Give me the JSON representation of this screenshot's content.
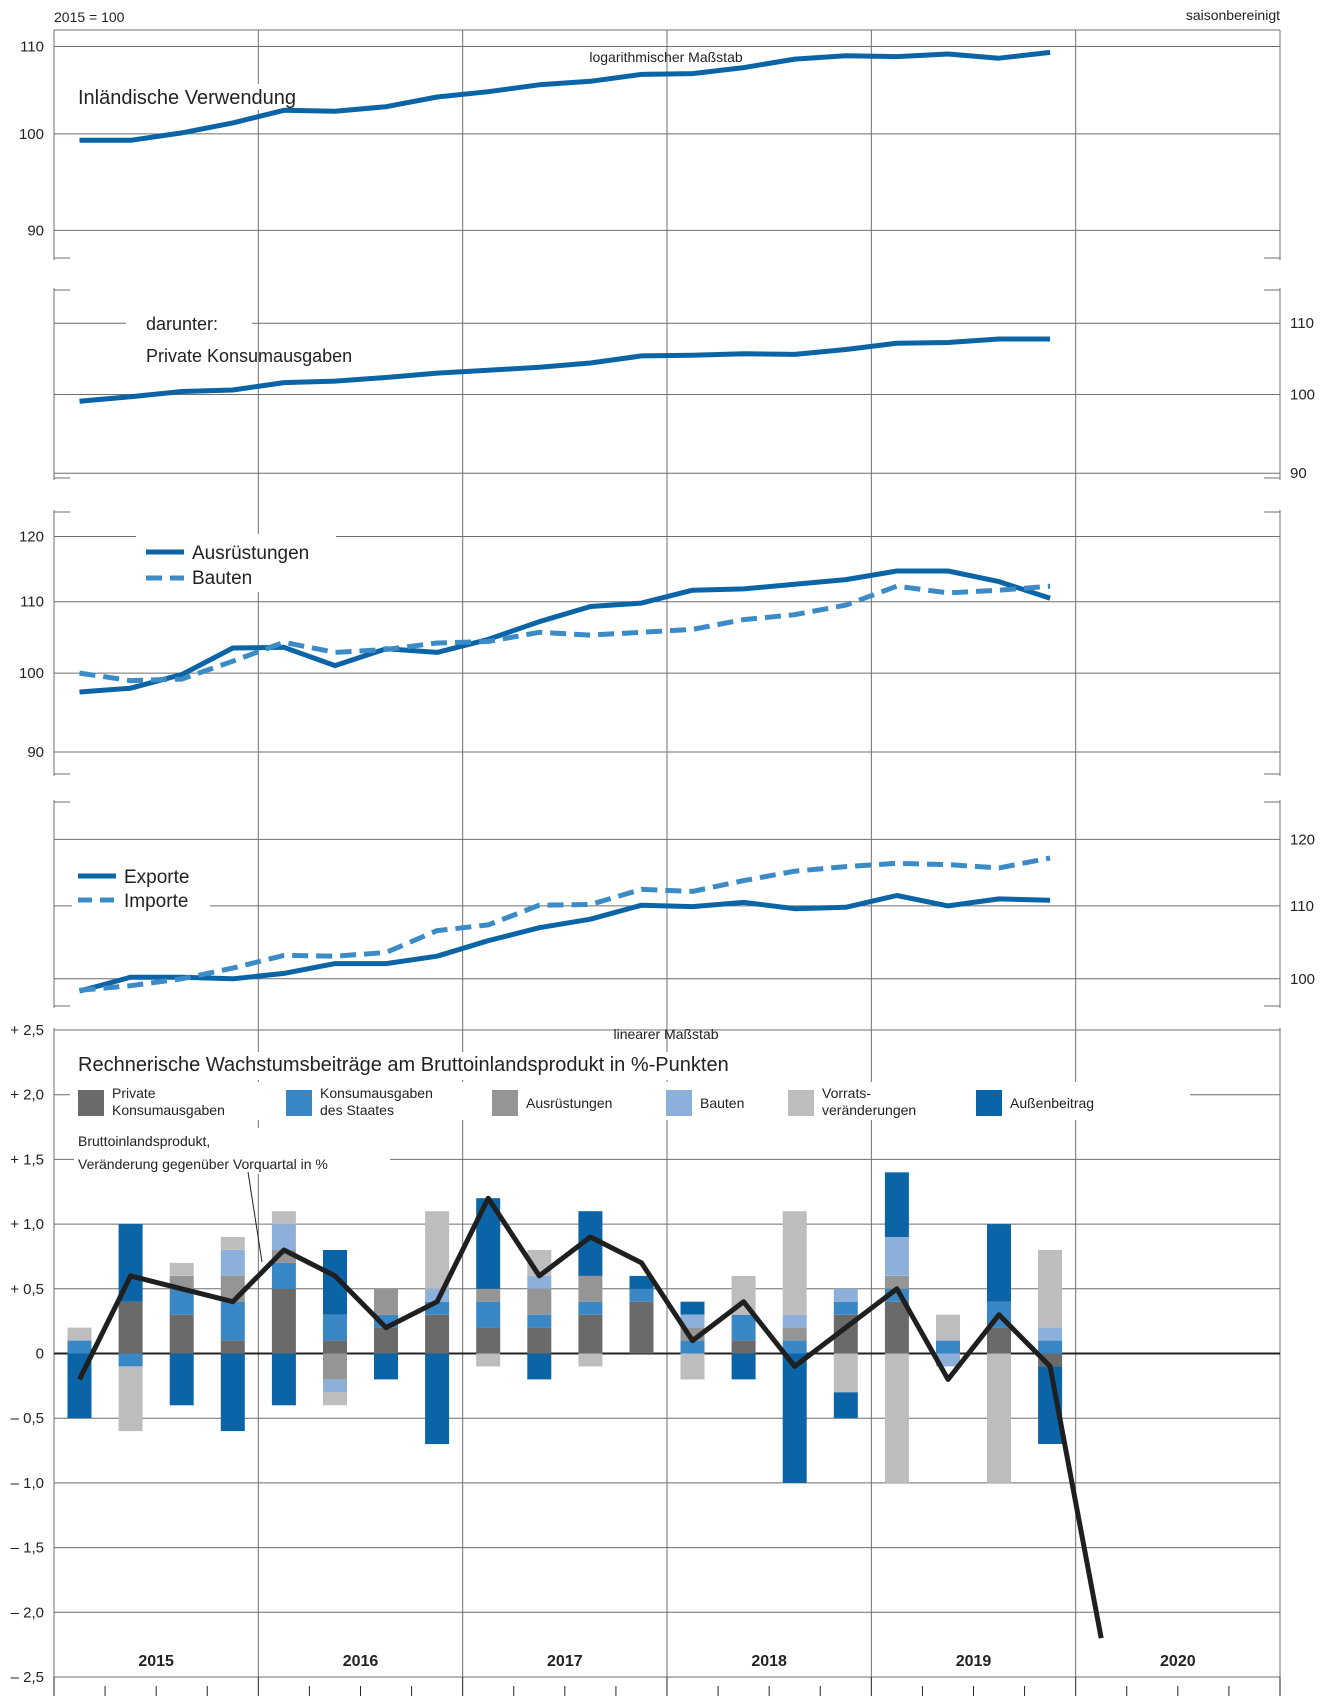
{
  "header": {
    "base_label": "2015 = 100",
    "adjustment_label": "saisonbereinigt"
  },
  "years": [
    "2015",
    "2016",
    "2017",
    "2018",
    "2019",
    "2020"
  ],
  "quarters_per_year": 4,
  "colors": {
    "grid": "#6f6f6f",
    "line_dark": "#0b64a5",
    "line_light": "#3b8bc6",
    "gdp_line": "#1f1f1f"
  },
  "chart_data": [
    {
      "type": "line",
      "scale": "log",
      "scale_note": "logarithmischer Maßstab",
      "title": "Inländische Verwendung",
      "yticks": [
        90,
        100,
        110
      ],
      "ylim": [
        86,
        112
      ],
      "axis_side": "left",
      "series": [
        {
          "name": "Inländische Verwendung",
          "style": "solid",
          "values": [
            99.3,
            99.3,
            100.1,
            101.2,
            102.6,
            102.5,
            103.0,
            104.1,
            104.7,
            105.5,
            105.9,
            106.7,
            106.8,
            107.5,
            108.5,
            108.9,
            108.8,
            109.1,
            108.6,
            109.3
          ]
        }
      ]
    },
    {
      "type": "line",
      "scale": "log",
      "title": "darunter:",
      "subtitle": "Private Konsumausgaben",
      "yticks": [
        90,
        100,
        110
      ],
      "ylim": [
        88,
        115
      ],
      "axis_side": "right",
      "series": [
        {
          "name": "Private Konsumausgaben",
          "style": "solid",
          "values": [
            99.1,
            99.7,
            100.4,
            100.6,
            101.6,
            101.8,
            102.3,
            102.9,
            103.3,
            103.7,
            104.3,
            105.3,
            105.4,
            105.6,
            105.5,
            106.2,
            107.1,
            107.2,
            107.7,
            107.7
          ]
        }
      ]
    },
    {
      "type": "line",
      "scale": "log",
      "yticks": [
        90,
        100,
        110,
        120
      ],
      "ylim": [
        86,
        124
      ],
      "axis_side": "left",
      "series": [
        {
          "name": "Ausrüstungen",
          "style": "solid",
          "values": [
            97.5,
            98.0,
            99.8,
            103.4,
            103.5,
            101.0,
            103.3,
            102.8,
            104.6,
            107.1,
            109.3,
            109.8,
            111.7,
            111.9,
            112.6,
            113.3,
            114.6,
            114.6,
            113.0,
            110.5
          ]
        },
        {
          "name": "Bauten",
          "style": "dashed",
          "values": [
            100.0,
            99.0,
            99.2,
            101.6,
            104.2,
            102.8,
            103.2,
            104.1,
            104.3,
            105.6,
            105.2,
            105.6,
            106.0,
            107.4,
            108.1,
            109.5,
            112.3,
            111.3,
            111.7,
            112.3
          ]
        }
      ]
    },
    {
      "type": "line",
      "scale": "log",
      "yticks": [
        100,
        110,
        120
      ],
      "ylim": [
        95,
        126
      ],
      "axis_side": "right",
      "series": [
        {
          "name": "Exporte",
          "style": "solid",
          "values": [
            98.4,
            100.2,
            100.2,
            100.0,
            100.7,
            102.0,
            102.0,
            103.0,
            105.1,
            106.9,
            108.1,
            110.1,
            109.9,
            110.5,
            109.6,
            109.8,
            111.5,
            110.0,
            111.0,
            110.8
          ]
        },
        {
          "name": "Importe",
          "style": "dashed",
          "values": [
            98.5,
            99.1,
            100.0,
            101.4,
            103.1,
            103.0,
            103.5,
            106.5,
            107.3,
            110.1,
            110.2,
            112.4,
            112.1,
            113.7,
            115.1,
            115.8,
            116.3,
            116.1,
            115.6,
            117.1
          ]
        }
      ]
    },
    {
      "type": "bar",
      "stacked": true,
      "scale": "linear",
      "scale_note": "linearer Maßstab",
      "title": "Rechnerische Wachstumsbeiträge am Bruttoinlandsprodukt in %-Punkten",
      "ylim": [
        -2.5,
        2.5
      ],
      "yticks": [
        -2.5,
        -2.0,
        -1.5,
        -1.0,
        -0.5,
        0,
        0.5,
        1.0,
        1.5,
        2.0,
        2.5
      ],
      "ytick_labels": [
        "– 2,5",
        "– 2,0",
        "– 1,5",
        "– 1,0",
        "– 0,5",
        "0",
        "+ 0,5",
        "+ 1,0",
        "+ 1,5",
        "+ 2,0",
        "+ 2,5"
      ],
      "series": [
        {
          "name": "Private Konsumausgaben",
          "label_lines": [
            "Private",
            "Konsumausgaben"
          ],
          "color": "#6a6a6a",
          "values": [
            0.0,
            0.4,
            0.3,
            0.1,
            0.5,
            0.1,
            0.2,
            0.3,
            0.2,
            0.2,
            0.3,
            0.4,
            0.0,
            0.1,
            0.0,
            0.3,
            0.4,
            0.0,
            0.2,
            -0.1
          ]
        },
        {
          "name": "Konsumausgaben des Staates",
          "label_lines": [
            "Konsumausgaben",
            "des Staates"
          ],
          "color": "#3a87c6",
          "values": [
            0.1,
            -0.1,
            0.2,
            0.3,
            0.2,
            0.2,
            0.1,
            0.1,
            0.2,
            0.1,
            0.1,
            0.1,
            0.1,
            0.2,
            0.1,
            0.1,
            0.1,
            0.1,
            0.2,
            0.1
          ]
        },
        {
          "name": "Ausrüstungen",
          "label_lines": [
            "Ausrüstungen"
          ],
          "color": "#959595",
          "values": [
            0.0,
            0.0,
            0.1,
            0.2,
            0.1,
            -0.2,
            0.2,
            0.0,
            0.1,
            0.2,
            0.2,
            0.0,
            0.1,
            0.0,
            0.1,
            0.0,
            0.1,
            0.0,
            0.0,
            0.0
          ]
        },
        {
          "name": "Bauten",
          "label_lines": [
            "Bauten"
          ],
          "color": "#8db0da",
          "values": [
            0.0,
            0.0,
            0.0,
            0.2,
            0.2,
            -0.1,
            0.0,
            0.1,
            0.0,
            0.1,
            0.0,
            0.0,
            0.1,
            0.0,
            0.1,
            0.1,
            0.3,
            -0.1,
            0.0,
            0.1
          ]
        },
        {
          "name": "Vorratsveränderungen",
          "label_lines": [
            "Vorrats-",
            "veränderungen"
          ],
          "color": "#bdbdbf",
          "values": [
            0.1,
            -0.5,
            0.1,
            0.1,
            0.1,
            -0.1,
            0.0,
            0.6,
            -0.1,
            0.2,
            -0.1,
            0.0,
            -0.2,
            0.3,
            0.8,
            -0.3,
            -1.0,
            0.2,
            -1.0,
            0.6
          ]
        },
        {
          "name": "Außenbeitrag",
          "label_lines": [
            "Außenbeitrag"
          ],
          "color": "#0b64a5",
          "values": [
            -0.5,
            0.6,
            -0.4,
            -0.6,
            -0.4,
            0.5,
            -0.2,
            -0.7,
            0.7,
            -0.2,
            0.5,
            0.1,
            0.1,
            -0.2,
            -1.0,
            -0.2,
            0.5,
            0.0,
            0.6,
            -0.6
          ]
        }
      ],
      "line_series": {
        "name": "Bruttoinlandsprodukt, Veränderung gegenüber Vorquartal in %",
        "label_lines": [
          "Bruttoinlandsprodukt,",
          "Veränderung gegenüber Vorquartal in %"
        ],
        "values": [
          -0.2,
          0.6,
          0.5,
          0.4,
          0.8,
          0.6,
          0.2,
          0.4,
          1.2,
          0.6,
          0.9,
          0.7,
          0.1,
          0.4,
          -0.1,
          0.2,
          0.5,
          -0.2,
          0.3,
          -0.1,
          -2.2
        ]
      }
    }
  ]
}
